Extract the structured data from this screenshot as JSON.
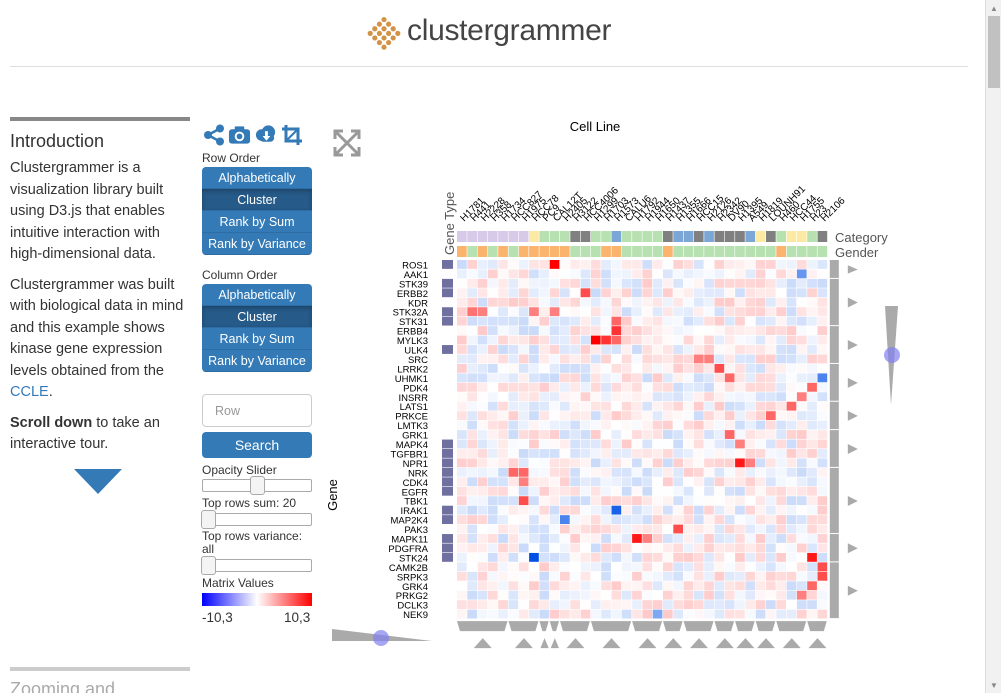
{
  "app": {
    "logo_text": "clustergrammer",
    "logo_icon": "clustergrammer-grid-logo"
  },
  "intro": {
    "title": "Introduction",
    "p1": "Clustergrammer is a visualization library built using D3.js that enables intuitive interaction with high-dimensional data.",
    "p2_before": "Clustergrammer was built with biological data in mind and this example shows kinase gene expression levels obtained from the ",
    "p2_link": "CCLE",
    "p2_after": ".",
    "p3_bold": "Scroll down",
    "p3_rest": " to take an interactive tour.",
    "next_title": "Zooming and"
  },
  "toolbar": {
    "icons": [
      "share-icon",
      "camera-icon",
      "download-icon",
      "crop-icon"
    ],
    "expand_icon": "expand-icon"
  },
  "row_order": {
    "label": "Row Order",
    "options": [
      "Alphabetically",
      "Cluster",
      "Rank by Sum",
      "Rank by Variance"
    ],
    "selected": "Cluster"
  },
  "col_order": {
    "label": "Column Order",
    "options": [
      "Alphabetically",
      "Cluster",
      "Rank by Sum",
      "Rank by Variance"
    ],
    "selected": "Cluster"
  },
  "search": {
    "placeholder": "Row",
    "button": "Search"
  },
  "sliders": {
    "opacity": {
      "label": "Opacity Slider",
      "value": 0.5
    },
    "top_sum": {
      "label": "Top rows sum: 20",
      "value": 0
    },
    "top_var": {
      "label": "Top rows variance: all",
      "value": 0
    }
  },
  "matrix_values": {
    "label": "Matrix Values",
    "min": "-10,3",
    "max": "10,3",
    "colors": {
      "negative": "#0000ff",
      "positive": "#ff0000"
    }
  },
  "heatmap": {
    "col_title": "Cell Line",
    "row_title": "Gene",
    "row_cat_title": "Gene Type",
    "col_cat_titles": [
      "Category",
      "Gender"
    ],
    "rows": [
      "ROS1",
      "AAK1",
      "STK39",
      "ERBB2",
      "KDR",
      "STK32A",
      "STK31",
      "ERBB4",
      "MYLK3",
      "ULK4",
      "SRC",
      "LRRK2",
      "UHMK1",
      "PDK4",
      "INSRR",
      "LATS1",
      "PRKCE",
      "LMTK3",
      "GRK1",
      "MAPK4",
      "TGFBR1",
      "NPR1",
      "NRK",
      "CDK4",
      "EGFR",
      "TBK1",
      "IRAK1",
      "MAP2K4",
      "PAK3",
      "MAPK11",
      "PDGFRA",
      "STK24",
      "CAMK2B",
      "SRPK3",
      "GRK4",
      "PRKG2",
      "DCLK3",
      "NEK9"
    ],
    "cols": [
      "H1781",
      "H441",
      "H2228",
      "H358",
      "H1734",
      "HCC827",
      "H1975",
      "HCC78",
      "PC9",
      "CAL12T",
      "H2405",
      "H3122",
      "HCC4006",
      "H1299",
      "H1703",
      "H1573",
      "CALU6",
      "H1792",
      "H1944",
      "H1650",
      "H1437",
      "H1355",
      "H1666",
      "HCC15",
      "H2126",
      "H2342",
      "DV90",
      "H1395",
      "A549",
      "H1819",
      "LOUNH91",
      "H460",
      "HCC44",
      "H1755",
      "H23",
      "H2106"
    ],
    "colors": {
      "row_cat": "#6f6fa0",
      "cat_gray": "#808080",
      "cat_green": "#b7e1b0",
      "cat_blue": "#7ba7d7",
      "cat_lavender": "#d7c9e8",
      "cat_yellow": "#fce9a4",
      "gender_orange": "#fbb46e",
      "gender_green": "#b7e1b0",
      "dendro": "#aaaaaa",
      "slider_dot": "#8080f0"
    }
  }
}
